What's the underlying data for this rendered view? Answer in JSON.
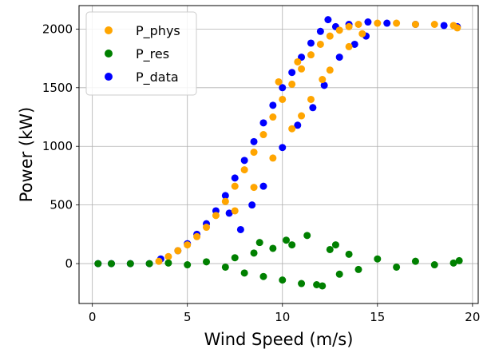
{
  "chart_data": {
    "type": "scatter",
    "title": "",
    "xlabel": "Wind Speed (m/s)",
    "ylabel": "Power (kW)",
    "xlim": [
      -0.7,
      20.3
    ],
    "ylim": [
      -340,
      2200
    ],
    "xticks": [
      0,
      5,
      10,
      15,
      20
    ],
    "yticks": [
      0,
      500,
      1000,
      1500,
      2000
    ],
    "xtick_labels": [
      "0",
      "5",
      "10",
      "15",
      "20"
    ],
    "ytick_labels": [
      "0",
      "500",
      "1000",
      "1500",
      "2000"
    ],
    "grid": true,
    "legend_position": "top-left",
    "series": [
      {
        "name": "P_data",
        "color": "#0000ff",
        "points": [
          [
            0.3,
            0
          ],
          [
            1,
            0
          ],
          [
            2,
            0
          ],
          [
            3,
            0
          ],
          [
            3.6,
            40
          ],
          [
            4.5,
            110
          ],
          [
            5,
            170
          ],
          [
            5.5,
            250
          ],
          [
            6,
            340
          ],
          [
            6.5,
            450
          ],
          [
            7,
            580
          ],
          [
            7.5,
            730
          ],
          [
            8,
            880
          ],
          [
            8.5,
            1040
          ],
          [
            9,
            1200
          ],
          [
            9.5,
            1350
          ],
          [
            10,
            1500
          ],
          [
            10.5,
            1630
          ],
          [
            11,
            1760
          ],
          [
            11.5,
            1880
          ],
          [
            12,
            1980
          ],
          [
            12.4,
            2080
          ],
          [
            12.8,
            2020
          ],
          [
            13.5,
            2040
          ],
          [
            14.5,
            2060
          ],
          [
            15.5,
            2050
          ],
          [
            17,
            2040
          ],
          [
            18.5,
            2030
          ],
          [
            19.2,
            2020
          ],
          [
            7.2,
            430
          ],
          [
            7.8,
            290
          ],
          [
            8.4,
            500
          ],
          [
            9,
            660
          ],
          [
            10,
            990
          ],
          [
            10.8,
            1180
          ],
          [
            11.6,
            1330
          ],
          [
            12.2,
            1520
          ],
          [
            13,
            1760
          ],
          [
            13.8,
            1870
          ],
          [
            14.4,
            1940
          ]
        ]
      },
      {
        "name": "P_phys",
        "color": "#ffa500",
        "points": [
          [
            3.5,
            20
          ],
          [
            4,
            60
          ],
          [
            4.5,
            110
          ],
          [
            5,
            160
          ],
          [
            5.5,
            230
          ],
          [
            6,
            310
          ],
          [
            6.5,
            410
          ],
          [
            7,
            530
          ],
          [
            7.5,
            660
          ],
          [
            8,
            800
          ],
          [
            8.5,
            950
          ],
          [
            9,
            1100
          ],
          [
            9.5,
            1250
          ],
          [
            10,
            1400
          ],
          [
            10.5,
            1530
          ],
          [
            11,
            1660
          ],
          [
            11.5,
            1780
          ],
          [
            12,
            1870
          ],
          [
            12.5,
            1940
          ],
          [
            13,
            1990
          ],
          [
            13.5,
            2020
          ],
          [
            14,
            2040
          ],
          [
            15,
            2050
          ],
          [
            16,
            2050
          ],
          [
            17,
            2040
          ],
          [
            18,
            2040
          ],
          [
            19,
            2030
          ],
          [
            19.2,
            2010
          ],
          [
            7.5,
            450
          ],
          [
            8.5,
            650
          ],
          [
            9.5,
            900
          ],
          [
            10.5,
            1150
          ],
          [
            11.5,
            1400
          ],
          [
            12.5,
            1650
          ],
          [
            13.5,
            1850
          ],
          [
            14.2,
            1960
          ],
          [
            12.1,
            1570
          ],
          [
            11,
            1260
          ],
          [
            9.8,
            1550
          ],
          [
            10.8,
            1720
          ]
        ]
      },
      {
        "name": "P_res",
        "color": "#008000",
        "points": [
          [
            0.3,
            0
          ],
          [
            1,
            0
          ],
          [
            2,
            0
          ],
          [
            3,
            0
          ],
          [
            4,
            5
          ],
          [
            5,
            -10
          ],
          [
            6,
            15
          ],
          [
            7,
            -30
          ],
          [
            7.5,
            50
          ],
          [
            8,
            -80
          ],
          [
            8.5,
            90
          ],
          [
            9,
            -110
          ],
          [
            9.5,
            130
          ],
          [
            10,
            -140
          ],
          [
            10.5,
            160
          ],
          [
            11,
            -170
          ],
          [
            11.3,
            240
          ],
          [
            11.8,
            -180
          ],
          [
            12.1,
            -190
          ],
          [
            12.5,
            120
          ],
          [
            13,
            -90
          ],
          [
            13.5,
            80
          ],
          [
            14,
            -50
          ],
          [
            15,
            40
          ],
          [
            16,
            -30
          ],
          [
            17,
            20
          ],
          [
            18,
            -10
          ],
          [
            19,
            5
          ],
          [
            19.3,
            25
          ],
          [
            8.8,
            180
          ],
          [
            10.2,
            200
          ],
          [
            12.8,
            160
          ]
        ]
      }
    ]
  }
}
